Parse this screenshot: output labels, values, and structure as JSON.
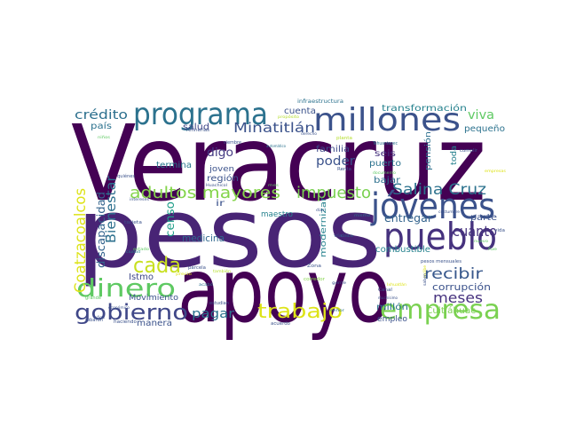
{
  "word_cloud": {
    "background": "#ffffff",
    "palette": "viridis",
    "words": [
      {
        "text": "Veracruz",
        "color": "#440154"
      },
      {
        "text": "pesos",
        "color": "#482475"
      },
      {
        "text": "apoyo",
        "color": "#440154"
      },
      {
        "text": "millones",
        "color": "#3b528b"
      },
      {
        "text": "programa",
        "color": "#2c728e"
      },
      {
        "text": "jóvenes",
        "color": "#3b528b"
      },
      {
        "text": "pueblo",
        "color": "#46327e"
      },
      {
        "text": "dinero",
        "color": "#5ec962"
      },
      {
        "text": "cada",
        "color": "#c8e020"
      },
      {
        "text": "gobierno",
        "color": "#3f4788"
      },
      {
        "text": "empresa",
        "color": "#7ad151"
      },
      {
        "text": "trabajo",
        "color": "#dde318"
      },
      {
        "text": "adultos mayores",
        "color": "#84d44b"
      },
      {
        "text": "impuesto",
        "color": "#7ad151"
      },
      {
        "text": "Salina Cruz",
        "color": "#2c728e"
      },
      {
        "text": "cuánto",
        "color": "#46327e"
      },
      {
        "text": "recibir",
        "color": "#38588c"
      },
      {
        "text": "meses",
        "color": "#46327e"
      },
      {
        "text": "Coatzacoalcos",
        "color": "#dde318"
      },
      {
        "text": "Bienestar",
        "color": "#2d708e"
      },
      {
        "text": "Minatitlán",
        "color": "#3b528b"
      },
      {
        "text": "crédito",
        "color": "#2d708e"
      },
      {
        "text": "viva",
        "color": "#5ec962"
      },
      {
        "text": "pagar",
        "color": "#2c728e"
      },
      {
        "text": "corrupción",
        "color": "#3b528b"
      },
      {
        "text": "discapacidad",
        "color": "#33638d"
      },
      {
        "text": "entregar",
        "color": "#33638d"
      },
      {
        "text": "medicina",
        "color": "#31688e"
      },
      {
        "text": "poder",
        "color": "#3b528b"
      },
      {
        "text": "digo",
        "color": "#443a83"
      },
      {
        "text": "censo",
        "color": "#1f9e89"
      },
      {
        "text": "Istmo",
        "color": "#3f4788"
      },
      {
        "text": "transformación",
        "color": "#26828e"
      },
      {
        "text": "pequeño",
        "color": "#2c728e"
      },
      {
        "text": "combustible",
        "color": "#26828e"
      },
      {
        "text": "Cuitláhuac",
        "color": "#7ad151"
      },
      {
        "text": "modernizar",
        "color": "#26828e"
      },
      {
        "text": "bajar",
        "color": "#2d708e"
      },
      {
        "text": "puerto",
        "color": "#2c728e"
      },
      {
        "text": "seis",
        "color": "#46327e"
      },
      {
        "text": "familia",
        "color": "#3e4a89"
      },
      {
        "text": "cuenta",
        "color": "#3b528b"
      },
      {
        "text": "salud",
        "color": "#3f4788"
      },
      {
        "text": "región",
        "color": "#3b528b"
      },
      {
        "text": "joven",
        "color": "#3b528b"
      },
      {
        "text": "termina",
        "color": "#2a788e"
      },
      {
        "text": "país",
        "color": "#2c728e"
      },
      {
        "text": "Movimiento",
        "color": "#3b528b"
      },
      {
        "text": "manera",
        "color": "#3b528b"
      },
      {
        "text": "maestro",
        "color": "#26828e"
      },
      {
        "text": "parte",
        "color": "#3b528b"
      },
      {
        "text": "ir",
        "color": "#3b528b"
      },
      {
        "text": "pensión",
        "color": "#2d708e"
      },
      {
        "text": "empleo",
        "color": "#3b528b"
      },
      {
        "text": "millón",
        "color": "#2c728e"
      },
      {
        "text": "toda",
        "color": "#26828e"
      },
      {
        "text": "infraestructura",
        "color": "#2c728e"
      },
      {
        "text": "refinerías",
        "color": "#3b528b"
      },
      {
        "text": "automático",
        "color": "#2c728e"
      },
      {
        "text": "derecho",
        "color": "#3b528b"
      },
      {
        "text": "planta",
        "color": "#b5de2b"
      },
      {
        "text": "Tehuantepec",
        "color": "#2d708e"
      },
      {
        "text": "cumplir",
        "color": "#3b528b"
      },
      {
        "text": "parcela",
        "color": "#3b528b"
      },
      {
        "text": "Zona",
        "color": "#3b528b"
      },
      {
        "text": "tarjeta",
        "color": "#3b528b"
      },
      {
        "text": "intereses",
        "color": "#3b528b"
      },
      {
        "text": "quiénes",
        "color": "#3b528b"
      },
      {
        "text": "siembre",
        "color": "#3b528b"
      },
      {
        "text": "costumbre",
        "color": "#3b528b"
      },
      {
        "text": "gente",
        "color": "#3b528b"
      },
      {
        "text": "Renta",
        "color": "#3b528b"
      },
      {
        "text": "pesos mensuales",
        "color": "#3b528b"
      },
      {
        "text": "acuerdo",
        "color": "#3b528b"
      },
      {
        "text": "estudian",
        "color": "#3b528b"
      },
      {
        "text": "Canal",
        "color": "#3b528b"
      },
      {
        "text": "robaron",
        "color": "#3b528b"
      },
      {
        "text": "haciendo",
        "color": "#3b528b"
      },
      {
        "text": "económico",
        "color": "#3b528b"
      },
      {
        "text": "vía",
        "color": "#3b528b"
      },
      {
        "text": "vida",
        "color": "#3b528b"
      },
      {
        "text": "grande",
        "color": "#5ec962"
      },
      {
        "text": "años",
        "color": "#3b528b"
      },
      {
        "text": "niños",
        "color": "#5ec962"
      },
      {
        "text": "corredor",
        "color": "#84d44b"
      },
      {
        "text": "propósito",
        "color": "#b5de2b"
      },
      {
        "text": "recibe",
        "color": "#dde318"
      },
      {
        "text": "empresas",
        "color": "#dde318"
      },
      {
        "text": "Huachicol",
        "color": "#3b528b"
      },
      {
        "text": "mismo",
        "color": "#2c728e"
      },
      {
        "text": "dar",
        "color": "#3b528b"
      },
      {
        "text": "cinco",
        "color": "#2c728e"
      },
      {
        "text": "muchísimo",
        "color": "#3b528b"
      },
      {
        "text": "saben",
        "color": "#3b528b"
      },
      {
        "text": "ciudad",
        "color": "#26828e"
      },
      {
        "text": "acabó",
        "color": "#2c728e"
      },
      {
        "text": "fue",
        "color": "#5ec962"
      },
      {
        "text": "estado",
        "color": "#5ec962"
      },
      {
        "text": "también",
        "color": "#b5de2b"
      },
      {
        "text": "documento",
        "color": "#5ec962"
      },
      {
        "text": "nuevo",
        "color": "#5ec962"
      },
      {
        "text": "precio",
        "color": "#dde318"
      },
      {
        "text": "mes",
        "color": "#5ec962"
      },
      {
        "text": "señor",
        "color": "#2c728e"
      },
      {
        "text": "Ixhuatlán",
        "color": "#dde318"
      }
    ]
  }
}
